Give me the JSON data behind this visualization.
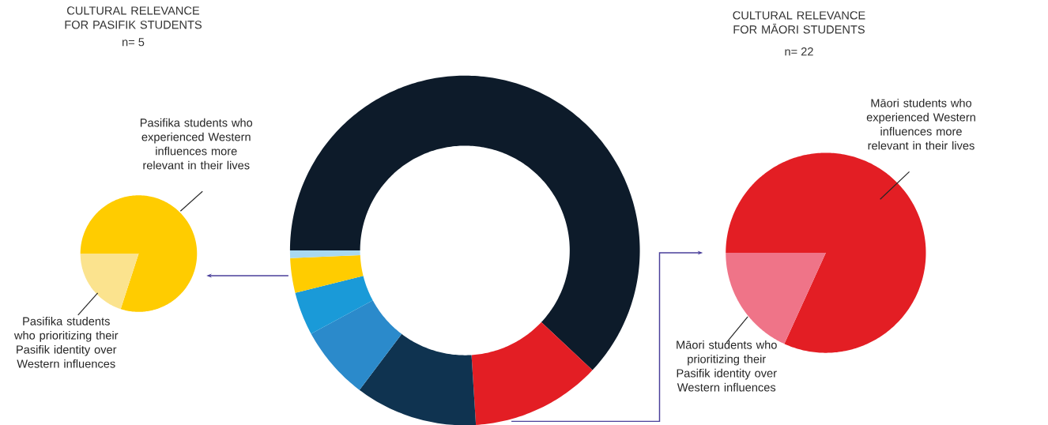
{
  "chart_data": [
    {
      "type": "pie",
      "title": "CULTURAL RELEVANCE FOR PASIFIK STUDENTS",
      "subtitle": "n= 5",
      "categories": [
        "Pasifika students who experienced Western influences more relevant in their lives",
        "Pasifika students who prioritizing their Pasifik identity over Western influences"
      ],
      "values": [
        80,
        20
      ],
      "colors": [
        "#ffcc00",
        "#fbe38e"
      ]
    },
    {
      "type": "donut",
      "categories": [
        null,
        null,
        null,
        null,
        null,
        null,
        null
      ],
      "values": [
        62,
        12,
        11.3,
        6.8,
        4,
        3.2,
        0.7
      ],
      "colors": [
        "#0d1b2a",
        "#e31e24",
        "#0f3350",
        "#2b8acb",
        "#1a9ad8",
        "#ffcc00",
        "#a8d8f0"
      ]
    },
    {
      "type": "pie",
      "title": "CULTURAL RELEVANCE FOR MĀORI STUDENTS",
      "subtitle": "n= 22",
      "categories": [
        "Māori students who experienced Western influences more relevant in their lives",
        "Māori students who prioritizing their Pasifik identity over Western influences"
      ],
      "values": [
        81.8,
        18.2
      ],
      "colors": [
        "#e31e24",
        "#ef7488"
      ]
    }
  ]
}
